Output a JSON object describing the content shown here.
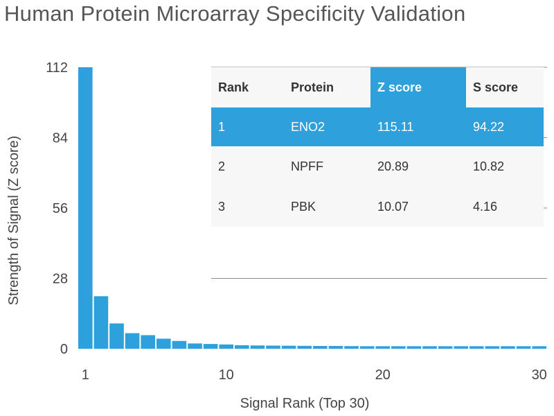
{
  "chart_data": {
    "type": "bar",
    "title": "Human Protein Microarray Specificity Validation",
    "xlabel": "Signal Rank (Top 30)",
    "ylabel": "Strength of Signal (Z score)",
    "x_ticks": [
      1,
      10,
      20,
      30
    ],
    "y_ticks": [
      0,
      28,
      56,
      84,
      112
    ],
    "ylim": [
      0,
      112
    ],
    "xlim": [
      0.5,
      30.5
    ],
    "bar_color": "#2ea0dc",
    "x": [
      1,
      2,
      3,
      4,
      5,
      6,
      7,
      8,
      9,
      10,
      11,
      12,
      13,
      14,
      15,
      16,
      17,
      18,
      19,
      20,
      21,
      22,
      23,
      24,
      25,
      26,
      27,
      28,
      29,
      30
    ],
    "values": [
      112,
      20.89,
      10.07,
      6.2,
      5.4,
      4.0,
      3.1,
      2.1,
      1.9,
      1.7,
      1.4,
      1.3,
      1.25,
      1.2,
      1.15,
      1.1,
      1.1,
      1.05,
      1.0,
      1.0,
      1.0,
      1.0,
      1.0,
      1.0,
      1.0,
      1.0,
      1.0,
      1.0,
      1.0,
      1.0
    ],
    "grid": "horizontal",
    "table": {
      "headers": [
        "Rank",
        "Protein",
        "Z score",
        "S score"
      ],
      "highlight_header": "Z score",
      "rows": [
        {
          "rank": "1",
          "protein": "ENO2",
          "z": "115.11",
          "s": "94.22",
          "highlight": true
        },
        {
          "rank": "2",
          "protein": "NPFF",
          "z": "20.89",
          "s": "10.82",
          "highlight": false
        },
        {
          "rank": "3",
          "protein": "PBK",
          "z": "10.07",
          "s": "4.16",
          "highlight": false
        }
      ]
    }
  }
}
